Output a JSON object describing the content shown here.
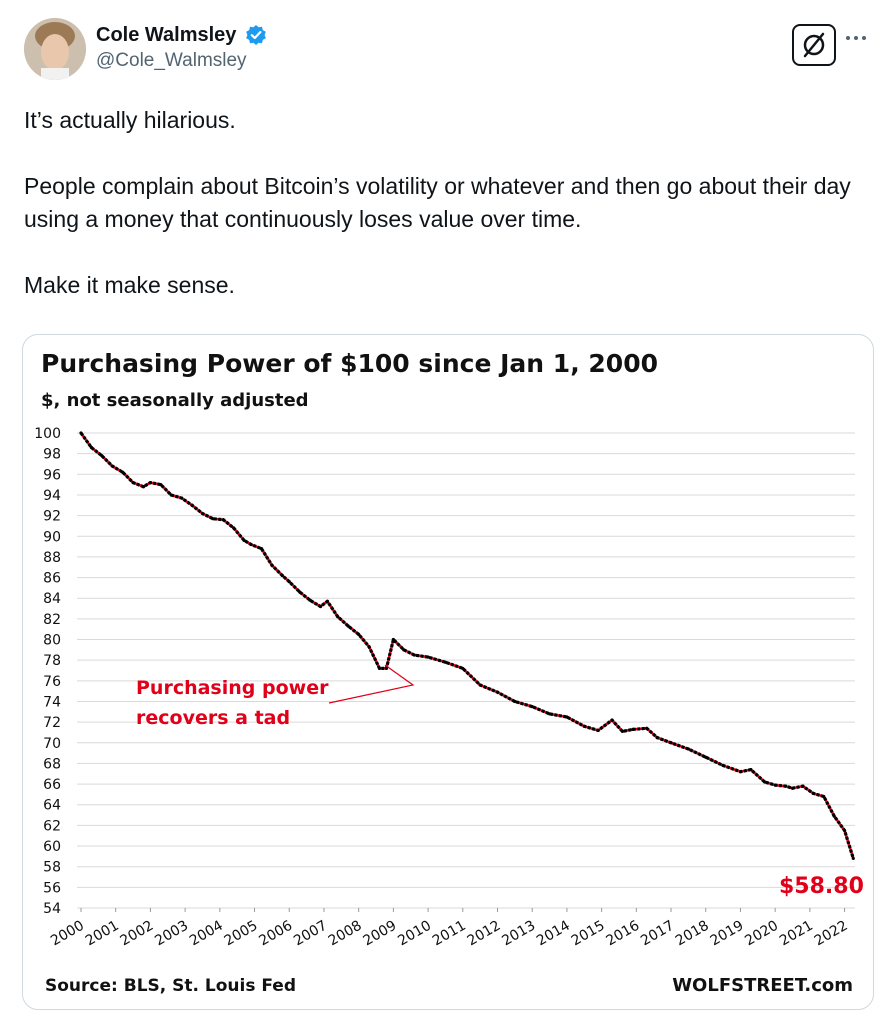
{
  "tweet": {
    "author": {
      "display_name": "Cole Walmsley",
      "handle": "@Cole_Walmsley",
      "verified": true
    },
    "paragraphs": [
      "It’s actually hilarious.",
      "People complain about Bitcoin’s volatility or whatever and then go about their day using a money that continuously loses value over time.",
      "Make it make sense."
    ]
  },
  "icons": {
    "verified": "verified-badge-icon",
    "grok": "grok-icon",
    "more": "more-icon"
  },
  "colors": {
    "verified_blue": "#1d9bf0",
    "line_red": "#e0001a",
    "text": "#0f1419",
    "muted": "#536471"
  },
  "chart_data": {
    "type": "line",
    "title": "Purchasing  Power of $100 since Jan 1, 2000",
    "subtitle": "$, not seasonally adjusted",
    "ylim": [
      54,
      100
    ],
    "yticks": [
      100,
      98,
      96,
      94,
      92,
      90,
      88,
      86,
      84,
      82,
      80,
      78,
      76,
      74,
      72,
      70,
      68,
      66,
      64,
      62,
      60,
      58,
      56,
      54
    ],
    "xlim": [
      2000,
      2022.3
    ],
    "xticks": [
      "2000",
      "2001",
      "2002",
      "2003",
      "2004",
      "2005",
      "2006",
      "2007",
      "2008",
      "2009",
      "2010",
      "2011",
      "2012",
      "2013",
      "2014",
      "2015",
      "2016",
      "2017",
      "2018",
      "2019",
      "2020",
      "2021",
      "2022"
    ],
    "series": [
      {
        "name": "Purchasing power of $100",
        "x": [
          2000,
          2000.3,
          2000.6,
          2000.9,
          2001.2,
          2001.5,
          2001.8,
          2002.0,
          2002.3,
          2002.6,
          2002.9,
          2003.2,
          2003.5,
          2003.8,
          2004.1,
          2004.4,
          2004.7,
          2004.9,
          2005.2,
          2005.5,
          2005.8,
          2006.0,
          2006.3,
          2006.6,
          2006.9,
          2007.1,
          2007.4,
          2007.7,
          2008.0,
          2008.3,
          2008.6,
          2008.8,
          2009.0,
          2009.3,
          2009.6,
          2010.0,
          2010.5,
          2011.0,
          2011.5,
          2012.0,
          2012.5,
          2013.0,
          2013.5,
          2014.0,
          2014.5,
          2014.9,
          2015.3,
          2015.6,
          2015.9,
          2016.3,
          2016.6,
          2017.0,
          2017.5,
          2018.0,
          2018.5,
          2019.0,
          2019.3,
          2019.7,
          2020.0,
          2020.3,
          2020.5,
          2020.8,
          2021.1,
          2021.4,
          2021.7,
          2022.0,
          2022.25
        ],
        "y": [
          100,
          98.6,
          97.8,
          96.8,
          96.2,
          95.2,
          94.8,
          95.2,
          95.0,
          94.0,
          93.7,
          93.0,
          92.2,
          91.7,
          91.6,
          90.8,
          89.6,
          89.2,
          88.8,
          87.2,
          86.2,
          85.6,
          84.6,
          83.8,
          83.2,
          83.7,
          82.2,
          81.3,
          80.5,
          79.3,
          77.2,
          77.2,
          80.0,
          79.0,
          78.5,
          78.3,
          77.8,
          77.2,
          75.6,
          74.9,
          74.0,
          73.5,
          72.8,
          72.5,
          71.6,
          71.2,
          72.2,
          71.1,
          71.3,
          71.4,
          70.5,
          70.0,
          69.4,
          68.6,
          67.8,
          67.2,
          67.4,
          66.2,
          65.9,
          65.8,
          65.6,
          65.8,
          65.1,
          64.8,
          62.9,
          61.5,
          58.8
        ]
      }
    ],
    "annotations": [
      {
        "text_lines": [
          "Purchasing power",
          "recovers a tad"
        ],
        "color": "#e0001a",
        "points_to": [
          2008.6,
          77.2
        ]
      },
      {
        "text": "$58.80",
        "color": "#e0001a",
        "points_to": [
          2022.25,
          58.8
        ]
      }
    ],
    "footer_left": "Source: BLS, St. Louis Fed",
    "footer_right": "WOLFSTREET.com"
  }
}
